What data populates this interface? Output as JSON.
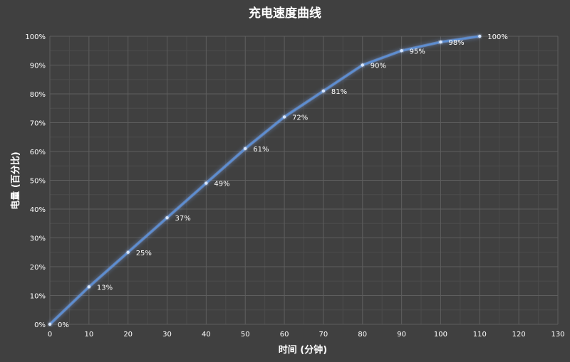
{
  "chart_data": {
    "type": "line",
    "title": "充电速度曲线",
    "xlabel": "时间 (分钟)",
    "ylabel": "电量 (百分比)",
    "x": [
      0,
      10,
      20,
      30,
      40,
      50,
      60,
      70,
      80,
      90,
      100,
      110
    ],
    "series": [
      {
        "values": [
          0,
          13,
          25,
          37,
          49,
          61,
          72,
          81,
          90,
          95,
          98,
          100
        ],
        "data_labels": [
          "0%",
          "13%",
          "25%",
          "37%",
          "49%",
          "61%",
          "72%",
          "81%",
          "90%",
          "95%",
          "98%",
          "100%"
        ],
        "color": "#5b8fd6"
      }
    ],
    "xlim": [
      0,
      130
    ],
    "ylim": [
      0,
      100
    ],
    "x_ticks": [
      0,
      10,
      20,
      30,
      40,
      50,
      60,
      70,
      80,
      90,
      100,
      110,
      120,
      130
    ],
    "x_tick_labels": [
      "0",
      "10",
      "20",
      "30",
      "40",
      "50",
      "60",
      "70",
      "80",
      "90",
      "100",
      "110",
      "120",
      "130"
    ],
    "y_ticks": [
      0,
      10,
      20,
      30,
      40,
      50,
      60,
      70,
      80,
      90,
      100
    ],
    "y_tick_labels": [
      "0%",
      "10%",
      "20%",
      "30%",
      "40%",
      "50%",
      "60%",
      "70%",
      "80%",
      "90%",
      "100%"
    ],
    "grid": true,
    "minor_grid": true,
    "legend": "none",
    "colors": {
      "background": "#404040",
      "grid_major": "#5e5e5e",
      "grid_minor": "#4c4c4c",
      "text": "#ffffff",
      "line": "#5b8fd6",
      "line_glow": "#7fb0ff",
      "marker": "#d6e6ff"
    }
  }
}
